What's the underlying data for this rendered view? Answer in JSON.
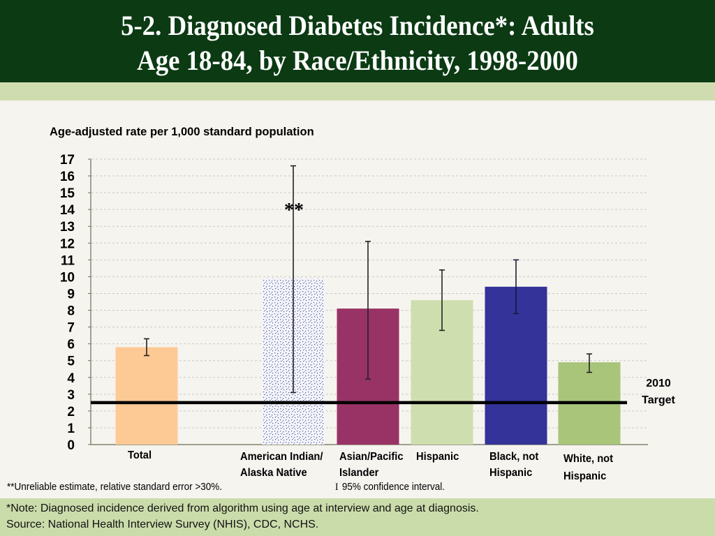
{
  "header": {
    "title_line1": "5-2.  Diagnosed Diabetes Incidence*: Adults",
    "title_line2": "Age 18-84, by Race/Ethnicity, 1998-2000"
  },
  "chart_data": {
    "type": "bar",
    "title": "5-2. Diagnosed Diabetes Incidence*: Adults Age 18-84, by Race/Ethnicity, 1998-2000",
    "ylabel": "Age-adjusted rate per 1,000 standard population",
    "xlabel": "",
    "ylim": [
      0,
      17
    ],
    "yticks": [
      "0",
      "1",
      "2",
      "3",
      "4",
      "5",
      "6",
      "7",
      "8",
      "9",
      "10",
      "11",
      "12",
      "13",
      "14",
      "15",
      "16",
      "17"
    ],
    "grid": true,
    "categories": [
      {
        "lines": [
          "Total"
        ]
      },
      {
        "lines": [
          "American Indian/",
          "Alaska Native"
        ]
      },
      {
        "lines": [
          "Asian/Pacific",
          " Islander"
        ]
      },
      {
        "lines": [
          "Hispanic"
        ]
      },
      {
        "lines": [
          "Black, not",
          "Hispanic"
        ]
      },
      {
        "lines": [
          "White, not",
          "Hispanic"
        ]
      }
    ],
    "category_names": [
      "Total",
      "American Indian/Alaska Native",
      "Asian/Pacific Islander",
      "Hispanic",
      "Black, not Hispanic",
      "White, not Hispanic"
    ],
    "values": [
      5.8,
      9.9,
      8.1,
      8.6,
      9.4,
      4.9
    ],
    "ci_low": [
      5.3,
      3.1,
      3.9,
      6.8,
      7.8,
      4.3
    ],
    "ci_high": [
      6.3,
      16.6,
      12.1,
      10.4,
      11.0,
      5.4
    ],
    "colors": [
      "#fdc994",
      "pattern",
      "#993366",
      "#cfdeae",
      "#333399",
      "#a8c57a"
    ],
    "annotations": [
      {
        "category": "American Indian/Alaska Native",
        "text": "**"
      }
    ],
    "target": {
      "value": 2.5,
      "label_lines": [
        "2010",
        "Target"
      ]
    }
  },
  "footnotes": {
    "unreliable": "**Unreliable estimate, relative standard error >30%.",
    "ci_glyph": "I",
    "ci_text": "95% confidence interval."
  },
  "note": {
    "line1": "*Note: Diagnosed incidence derived from algorithm using age at interview and age at diagnosis.",
    "line2": "Source: National Health Interview Survey (NHIS), CDC, NCHS."
  }
}
